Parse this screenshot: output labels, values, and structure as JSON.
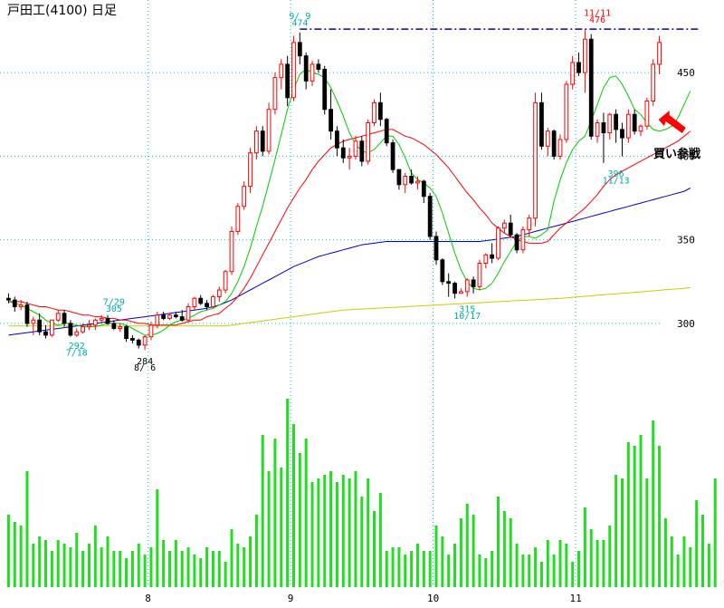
{
  "chart_data": {
    "type": "candlestick",
    "title": "戸田工(4100) 日足",
    "y_ticks": [
      300,
      350,
      400,
      450
    ],
    "x_month_labels": [
      "8",
      "9",
      "10",
      "11"
    ],
    "price_range": [
      281,
      488
    ],
    "colors": {
      "up": "#ff0000",
      "down": "#000000",
      "ma_short": "#00cc00",
      "ma_mid": "#ff0000",
      "ma_long": "#0000cc",
      "ma_longest": "#cccc00",
      "volume": "#22dd22",
      "grid": "#00cccc",
      "resistance": "#0000cc",
      "arrow": "#ff0000"
    },
    "candles": [
      {
        "o": 315,
        "h": 318,
        "l": 312,
        "c": 314
      },
      {
        "o": 314,
        "h": 316,
        "l": 307,
        "c": 310
      },
      {
        "o": 310,
        "h": 314,
        "l": 308,
        "c": 311
      },
      {
        "o": 311,
        "h": 313,
        "l": 298,
        "c": 300
      },
      {
        "o": 300,
        "h": 304,
        "l": 293,
        "c": 302
      },
      {
        "o": 302,
        "h": 306,
        "l": 293,
        "c": 295
      },
      {
        "o": 295,
        "h": 299,
        "l": 291,
        "c": 293
      },
      {
        "o": 293,
        "h": 302,
        "l": 292,
        "c": 302
      },
      {
        "o": 302,
        "h": 308,
        "l": 301,
        "c": 306
      },
      {
        "o": 306,
        "h": 308,
        "l": 298,
        "c": 300
      },
      {
        "o": 300,
        "h": 302,
        "l": 292,
        "c": 293
      },
      {
        "o": 293,
        "h": 297,
        "l": 292,
        "c": 295
      },
      {
        "o": 295,
        "h": 300,
        "l": 294,
        "c": 298
      },
      {
        "o": 298,
        "h": 302,
        "l": 296,
        "c": 299
      },
      {
        "o": 299,
        "h": 303,
        "l": 296,
        "c": 302
      },
      {
        "o": 302,
        "h": 305,
        "l": 300,
        "c": 303
      },
      {
        "o": 303,
        "h": 305,
        "l": 299,
        "c": 300
      },
      {
        "o": 300,
        "h": 302,
        "l": 296,
        "c": 297
      },
      {
        "o": 297,
        "h": 300,
        "l": 295,
        "c": 298
      },
      {
        "o": 298,
        "h": 299,
        "l": 289,
        "c": 291
      },
      {
        "o": 291,
        "h": 293,
        "l": 288,
        "c": 290
      },
      {
        "o": 290,
        "h": 291,
        "l": 285,
        "c": 287
      },
      {
        "o": 287,
        "h": 293,
        "l": 284,
        "c": 292
      },
      {
        "o": 292,
        "h": 301,
        "l": 290,
        "c": 299
      },
      {
        "o": 299,
        "h": 307,
        "l": 297,
        "c": 305
      },
      {
        "o": 305,
        "h": 307,
        "l": 302,
        "c": 303
      },
      {
        "o": 303,
        "h": 306,
        "l": 302,
        "c": 305
      },
      {
        "o": 305,
        "h": 307,
        "l": 303,
        "c": 304
      },
      {
        "o": 304,
        "h": 308,
        "l": 301,
        "c": 302
      },
      {
        "o": 302,
        "h": 312,
        "l": 301,
        "c": 310
      },
      {
        "o": 310,
        "h": 316,
        "l": 308,
        "c": 315
      },
      {
        "o": 315,
        "h": 317,
        "l": 311,
        "c": 312
      },
      {
        "o": 312,
        "h": 314,
        "l": 308,
        "c": 310
      },
      {
        "o": 310,
        "h": 317,
        "l": 309,
        "c": 316
      },
      {
        "o": 316,
        "h": 322,
        "l": 313,
        "c": 320
      },
      {
        "o": 320,
        "h": 332,
        "l": 318,
        "c": 331
      },
      {
        "o": 331,
        "h": 358,
        "l": 329,
        "c": 355
      },
      {
        "o": 355,
        "h": 372,
        "l": 353,
        "c": 370
      },
      {
        "o": 370,
        "h": 385,
        "l": 368,
        "c": 382
      },
      {
        "o": 382,
        "h": 405,
        "l": 378,
        "c": 402
      },
      {
        "o": 402,
        "h": 418,
        "l": 398,
        "c": 415
      },
      {
        "o": 415,
        "h": 418,
        "l": 400,
        "c": 403
      },
      {
        "o": 403,
        "h": 432,
        "l": 401,
        "c": 428
      },
      {
        "o": 428,
        "h": 450,
        "l": 425,
        "c": 447
      },
      {
        "o": 447,
        "h": 458,
        "l": 440,
        "c": 455
      },
      {
        "o": 455,
        "h": 460,
        "l": 430,
        "c": 435
      },
      {
        "o": 435,
        "h": 472,
        "l": 433,
        "c": 468
      },
      {
        "o": 468,
        "h": 474,
        "l": 455,
        "c": 460
      },
      {
        "o": 460,
        "h": 462,
        "l": 440,
        "c": 445
      },
      {
        "o": 445,
        "h": 457,
        "l": 442,
        "c": 455
      },
      {
        "o": 455,
        "h": 458,
        "l": 450,
        "c": 452
      },
      {
        "o": 452,
        "h": 454,
        "l": 425,
        "c": 428
      },
      {
        "o": 428,
        "h": 440,
        "l": 410,
        "c": 415
      },
      {
        "o": 415,
        "h": 418,
        "l": 400,
        "c": 405
      },
      {
        "o": 405,
        "h": 410,
        "l": 396,
        "c": 399
      },
      {
        "o": 399,
        "h": 405,
        "l": 392,
        "c": 400
      },
      {
        "o": 400,
        "h": 412,
        "l": 398,
        "c": 409
      },
      {
        "o": 409,
        "h": 412,
        "l": 394,
        "c": 397
      },
      {
        "o": 397,
        "h": 422,
        "l": 395,
        "c": 420
      },
      {
        "o": 420,
        "h": 434,
        "l": 418,
        "c": 432
      },
      {
        "o": 432,
        "h": 438,
        "l": 418,
        "c": 422
      },
      {
        "o": 422,
        "h": 423,
        "l": 406,
        "c": 408
      },
      {
        "o": 408,
        "h": 410,
        "l": 390,
        "c": 392
      },
      {
        "o": 392,
        "h": 392,
        "l": 380,
        "c": 383
      },
      {
        "o": 383,
        "h": 390,
        "l": 378,
        "c": 388
      },
      {
        "o": 388,
        "h": 392,
        "l": 383,
        "c": 384
      },
      {
        "o": 384,
        "h": 388,
        "l": 380,
        "c": 385
      },
      {
        "o": 385,
        "h": 386,
        "l": 372,
        "c": 376
      },
      {
        "o": 376,
        "h": 378,
        "l": 350,
        "c": 352
      },
      {
        "o": 352,
        "h": 355,
        "l": 335,
        "c": 338
      },
      {
        "o": 338,
        "h": 339,
        "l": 323,
        "c": 325
      },
      {
        "o": 325,
        "h": 330,
        "l": 316,
        "c": 324
      },
      {
        "o": 324,
        "h": 325,
        "l": 315,
        "c": 318
      },
      {
        "o": 318,
        "h": 321,
        "l": 318,
        "c": 319
      },
      {
        "o": 319,
        "h": 327,
        "l": 316,
        "c": 326
      },
      {
        "o": 326,
        "h": 328,
        "l": 318,
        "c": 322
      },
      {
        "o": 322,
        "h": 338,
        "l": 320,
        "c": 336
      },
      {
        "o": 336,
        "h": 342,
        "l": 333,
        "c": 341
      },
      {
        "o": 341,
        "h": 348,
        "l": 336,
        "c": 339
      },
      {
        "o": 339,
        "h": 358,
        "l": 338,
        "c": 357
      },
      {
        "o": 357,
        "h": 362,
        "l": 354,
        "c": 360
      },
      {
        "o": 360,
        "h": 365,
        "l": 352,
        "c": 353
      },
      {
        "o": 353,
        "h": 354,
        "l": 342,
        "c": 344
      },
      {
        "o": 344,
        "h": 358,
        "l": 342,
        "c": 356
      },
      {
        "o": 356,
        "h": 365,
        "l": 352,
        "c": 363
      },
      {
        "o": 363,
        "h": 438,
        "l": 358,
        "c": 432
      },
      {
        "o": 432,
        "h": 438,
        "l": 404,
        "c": 406
      },
      {
        "o": 406,
        "h": 417,
        "l": 400,
        "c": 415
      },
      {
        "o": 415,
        "h": 416,
        "l": 398,
        "c": 400
      },
      {
        "o": 400,
        "h": 413,
        "l": 398,
        "c": 410
      },
      {
        "o": 410,
        "h": 445,
        "l": 408,
        "c": 443
      },
      {
        "o": 443,
        "h": 460,
        "l": 440,
        "c": 456
      },
      {
        "o": 456,
        "h": 462,
        "l": 448,
        "c": 450
      },
      {
        "o": 450,
        "h": 476,
        "l": 438,
        "c": 470
      },
      {
        "o": 470,
        "h": 473,
        "l": 410,
        "c": 412
      },
      {
        "o": 412,
        "h": 422,
        "l": 408,
        "c": 420
      },
      {
        "o": 420,
        "h": 426,
        "l": 396,
        "c": 414
      },
      {
        "o": 414,
        "h": 426,
        "l": 410,
        "c": 425
      },
      {
        "o": 425,
        "h": 428,
        "l": 408,
        "c": 416
      },
      {
        "o": 416,
        "h": 420,
        "l": 400,
        "c": 411
      },
      {
        "o": 411,
        "h": 428,
        "l": 408,
        "c": 425
      },
      {
        "o": 425,
        "h": 428,
        "l": 413,
        "c": 415
      },
      {
        "o": 415,
        "h": 419,
        "l": 412,
        "c": 418
      },
      {
        "o": 418,
        "h": 435,
        "l": 416,
        "c": 433
      },
      {
        "o": 433,
        "h": 458,
        "l": 430,
        "c": 455
      },
      {
        "o": 455,
        "h": 472,
        "l": 449,
        "c": 468
      }
    ],
    "ma_short": [
      313,
      312,
      311,
      309,
      307,
      305,
      302,
      300,
      299,
      300,
      300,
      299,
      298,
      298,
      298,
      299,
      300,
      300,
      300,
      299,
      297,
      295,
      293,
      293,
      294,
      296,
      299,
      301,
      302,
      303,
      305,
      307,
      308,
      309,
      311,
      313,
      318,
      325,
      334,
      345,
      358,
      370,
      384,
      398,
      413,
      428,
      440,
      449,
      452,
      450,
      449,
      447,
      441,
      433,
      424,
      414,
      407,
      403,
      402,
      404,
      408,
      412,
      412,
      407,
      399,
      390,
      386,
      384,
      381,
      376,
      366,
      354,
      342,
      332,
      325,
      321,
      320,
      321,
      324,
      330,
      337,
      343,
      349,
      352,
      352,
      351,
      353,
      356,
      373,
      386,
      396,
      404,
      409,
      412,
      421,
      431,
      441,
      447,
      448,
      443,
      436,
      428,
      425,
      420,
      416,
      415,
      416,
      418,
      423,
      431,
      439
    ],
    "ma_mid": [
      313,
      313,
      313,
      312,
      311,
      310,
      310,
      309,
      308,
      308,
      307,
      306,
      305,
      305,
      304,
      304,
      303,
      303,
      302,
      302,
      301,
      300,
      300,
      299,
      299,
      299,
      299,
      299,
      300,
      301,
      302,
      302,
      304,
      305,
      306,
      309,
      312,
      316,
      321,
      327,
      334,
      341,
      348,
      355,
      362,
      369,
      375,
      381,
      386,
      392,
      397,
      401,
      405,
      407,
      409,
      410,
      411,
      412,
      413,
      414,
      415,
      416,
      416,
      414,
      412,
      411,
      409,
      407,
      404,
      401,
      397,
      393,
      388,
      383,
      378,
      374,
      369,
      365,
      360,
      357,
      354,
      352,
      350,
      349,
      348,
      348,
      348,
      349,
      353,
      357,
      360,
      363,
      366,
      369,
      373,
      377,
      382,
      386,
      389,
      391,
      393,
      395,
      397,
      399,
      401,
      403,
      405,
      407,
      409,
      412,
      415
    ],
    "ma_long": [
      293,
      293.5,
      294,
      294.5,
      295,
      295.5,
      296,
      296.5,
      297,
      297.5,
      298,
      298.5,
      299,
      299.5,
      300,
      300.5,
      301,
      301.5,
      302,
      302.5,
      303,
      303.5,
      304,
      304.5,
      305,
      305.5,
      306,
      306.5,
      307,
      307.5,
      308,
      308.5,
      309,
      310,
      311,
      312.5,
      314,
      316,
      318,
      320,
      322,
      324,
      326,
      328,
      330,
      332,
      334,
      335.5,
      337,
      338.5,
      340,
      341,
      342,
      343,
      344,
      345,
      346,
      347,
      347.5,
      348,
      348.5,
      349,
      349,
      349,
      349,
      349,
      349,
      349,
      349,
      349,
      349,
      349,
      349,
      349,
      349,
      349,
      349,
      349.5,
      350,
      350.5,
      351,
      351.5,
      352,
      353,
      354,
      355,
      356,
      357,
      358,
      359,
      360,
      361,
      362,
      363,
      364,
      365,
      366,
      367,
      368,
      369,
      370,
      371,
      372,
      373,
      374,
      375,
      376,
      377,
      378,
      379,
      381
    ],
    "ma_longest": [
      298.5,
      298.5,
      298.5,
      298.5,
      298.5,
      298.5,
      298.5,
      298.5,
      298.5,
      298.5,
      298.5,
      298.5,
      298.5,
      298.5,
      298.5,
      298.5,
      298.5,
      298.5,
      298.5,
      298.5,
      298.5,
      298.5,
      298.5,
      298.5,
      298.5,
      298.5,
      298.5,
      298.5,
      298.5,
      298.5,
      298.5,
      298.5,
      298.5,
      298.5,
      298.5,
      298.5,
      299,
      299.5,
      300,
      300.5,
      301,
      301.5,
      302,
      302.5,
      303,
      303.5,
      304,
      304.5,
      305,
      305.5,
      306,
      306.5,
      307,
      307.5,
      308,
      308.2,
      308.4,
      308.6,
      308.8,
      309,
      309.2,
      309.4,
      309.6,
      309.8,
      310,
      310.2,
      310.4,
      310.6,
      310.8,
      311,
      311.2,
      311.4,
      311.6,
      311.8,
      312,
      312.2,
      312.4,
      312.6,
      312.8,
      313,
      313.2,
      313.4,
      313.6,
      313.8,
      314,
      314.2,
      314.4,
      314.6,
      314.8,
      315,
      315.3,
      315.6,
      315.9,
      316.2,
      316.5,
      316.8,
      317.1,
      317.4,
      317.7,
      318,
      318.3,
      318.6,
      318.9,
      319.2,
      319.5,
      319.8,
      320.1,
      320.4,
      320.7,
      321,
      321.5
    ],
    "volume": [
      20,
      18,
      17,
      32,
      12,
      14,
      13,
      10,
      13,
      12,
      11,
      15,
      10,
      12,
      17,
      11,
      14,
      10,
      10,
      8,
      10,
      12,
      9,
      11,
      27,
      13,
      10,
      13,
      10,
      11,
      9,
      8,
      11,
      10,
      10,
      7,
      16,
      12,
      11,
      14,
      20,
      42,
      32,
      41,
      33,
      52,
      45,
      37,
      41,
      29,
      30,
      31,
      32,
      29,
      31,
      30,
      32,
      25,
      30,
      21,
      26,
      10,
      11,
      11,
      9,
      10,
      12,
      10,
      10,
      17,
      14,
      9,
      12,
      19,
      23,
      20,
      9,
      8,
      10,
      25,
      21,
      19,
      12,
      9,
      9,
      11,
      7,
      13,
      9,
      13,
      12,
      7,
      10,
      22,
      16,
      13,
      13,
      17,
      31,
      30,
      40,
      39,
      42,
      30,
      46,
      39,
      19,
      14,
      9,
      14,
      11,
      24,
      20,
      12,
      30
    ],
    "annotations": [
      {
        "text": "7/29",
        "i": 17,
        "price": 311,
        "color": "#00aaaa",
        "pos": "above"
      },
      {
        "text": "305",
        "i": 17,
        "price": 307,
        "color": "#00aaaa",
        "pos": "above"
      },
      {
        "text": "292",
        "i": 11,
        "price": 289,
        "color": "#00aaaa",
        "pos": "below"
      },
      {
        "text": "7/18",
        "i": 11,
        "price": 285,
        "color": "#00aaaa",
        "pos": "below"
      },
      {
        "text": "284",
        "i": 22,
        "price": 280,
        "color": "#000000",
        "pos": "below"
      },
      {
        "text": "8/ 6",
        "i": 22,
        "price": 276,
        "color": "#000000",
        "pos": "below"
      },
      {
        "text": "9/ 9",
        "i": 47,
        "price": 482,
        "color": "#00aaaa",
        "pos": "above"
      },
      {
        "text": "474",
        "i": 47,
        "price": 478,
        "color": "#00aaaa",
        "pos": "above"
      },
      {
        "text": "315",
        "i": 74,
        "price": 311,
        "color": "#00aaaa",
        "pos": "below"
      },
      {
        "text": "10/17",
        "i": 74,
        "price": 307,
        "color": "#00aaaa",
        "pos": "below"
      },
      {
        "text": "11/11",
        "i": 95,
        "price": 484,
        "color": "#ff0000",
        "pos": "above"
      },
      {
        "text": "476",
        "i": 95,
        "price": 480,
        "color": "#ff0000",
        "pos": "above"
      },
      {
        "text": "396",
        "i": 98,
        "price": 392,
        "color": "#00aaaa",
        "pos": "below"
      },
      {
        "text": "11/13",
        "i": 98,
        "price": 388,
        "color": "#00aaaa",
        "pos": "below"
      }
    ],
    "resistance_line": {
      "price": 476,
      "from_i": 47
    },
    "callout": {
      "text": "買い参戦",
      "i": 104
    }
  }
}
